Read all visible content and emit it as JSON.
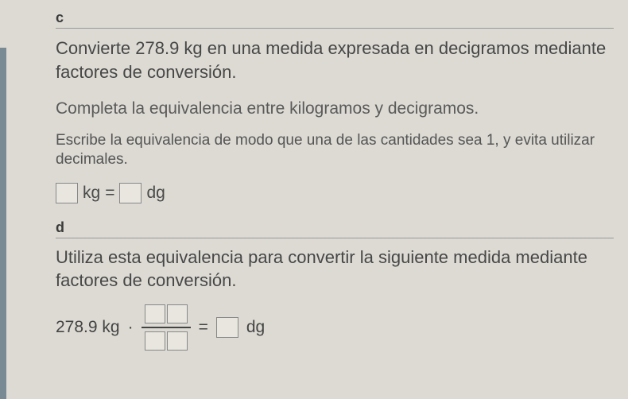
{
  "colors": {
    "background": "#dcdad3",
    "text_primary": "#474747",
    "text_secondary": "#5a5a5a",
    "text_hint": "#555",
    "input_bg": "#e8e6df",
    "input_border": "#888",
    "divider": "#999"
  },
  "section_c": {
    "letter": "c",
    "problem": "Convierte 278.9 kg en una medida expresada en decigramos mediante factores de conversión.",
    "instruction": "Completa la equivalencia entre kilogramos y decigramos.",
    "hint": "Escribe la equivalencia de modo que una de las cantidades sea 1, y evita utilizar decimales.",
    "equation": {
      "unit_left": "kg",
      "operator": "=",
      "unit_right": "dg"
    }
  },
  "section_d": {
    "letter": "d",
    "instruction": "Utiliza esta equivalencia para convertir la siguiente medida mediante factores de conversión.",
    "equation": {
      "value": "278.9 kg",
      "dot": "·",
      "equals": "=",
      "result_unit": "dg"
    }
  }
}
